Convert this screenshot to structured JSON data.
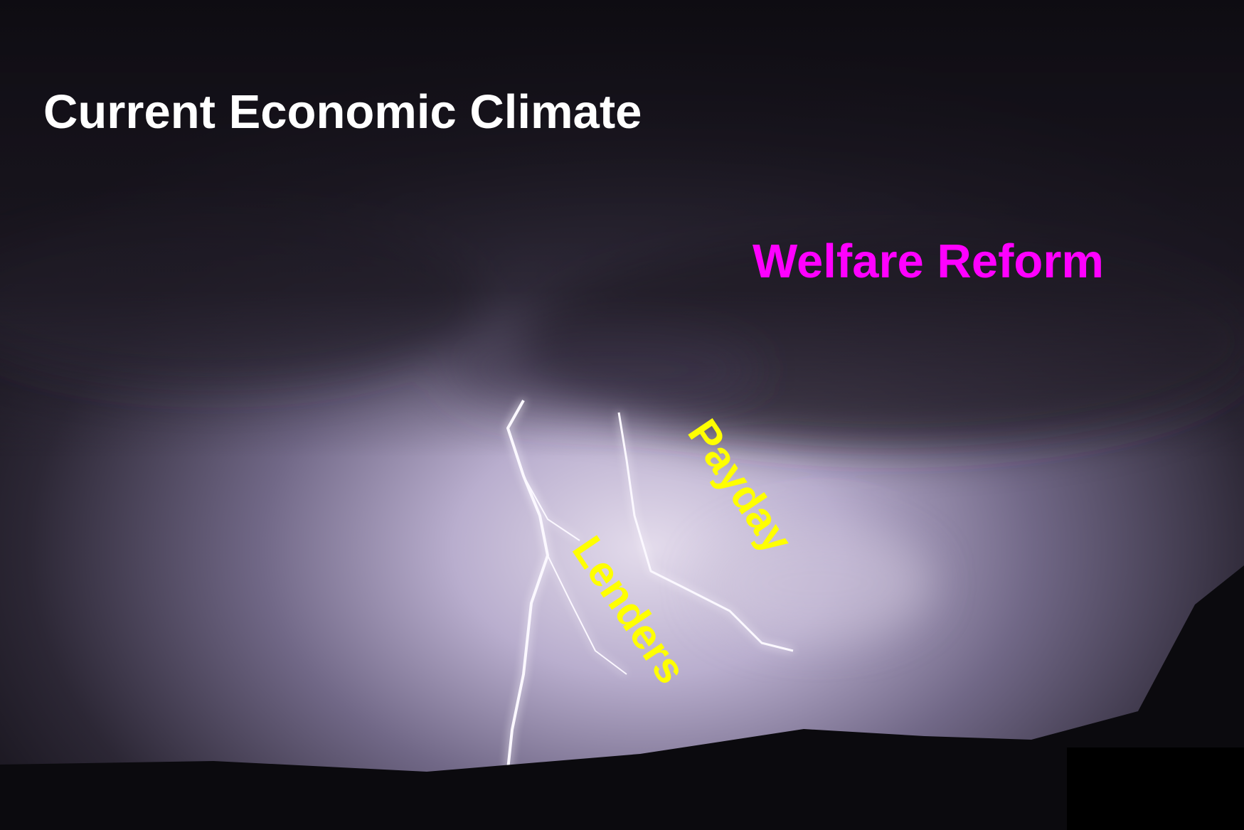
{
  "title": "Current Economic Climate",
  "annotations": [
    "Welfare Reform",
    "Payday",
    "Lenders"
  ]
}
